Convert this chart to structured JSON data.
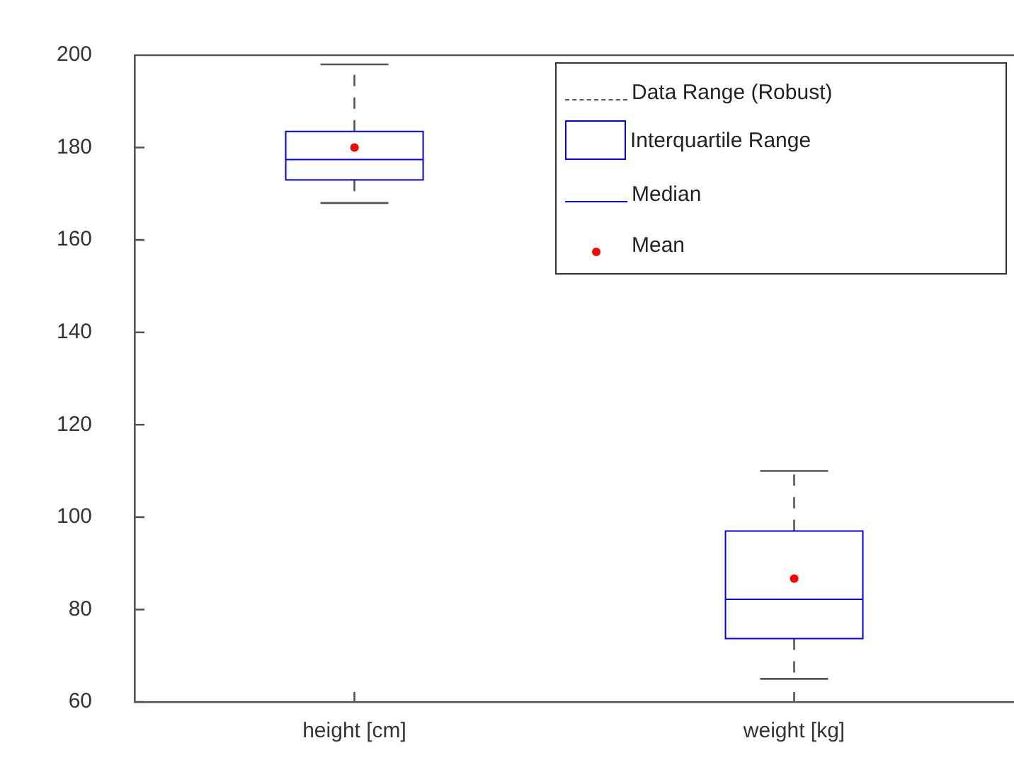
{
  "chart_data": {
    "type": "box",
    "categories": [
      "height [cm]",
      "weight [kg]"
    ],
    "series": [
      {
        "color": "#0000ff",
        "boxes": [
          {
            "low": 168,
            "q1": 173,
            "median": 177.4,
            "q3": 183.5,
            "high": 198,
            "mean": 180
          },
          {
            "low": 65,
            "q1": 73.7,
            "median": 82.2,
            "q3": 97,
            "high": 110,
            "mean": 86.7
          }
        ]
      }
    ],
    "ylim": [
      60,
      200
    ],
    "yticks": [
      60,
      80,
      100,
      120,
      140,
      160,
      180,
      200
    ],
    "grid": false,
    "annotations": [
      "Data Range (Robust)",
      "Interquartile Range",
      "Median",
      "Mean"
    ]
  }
}
